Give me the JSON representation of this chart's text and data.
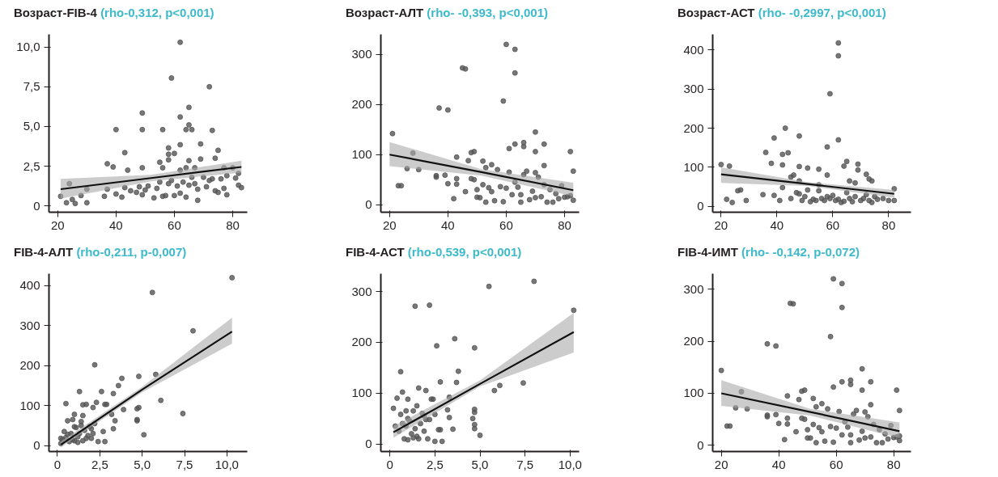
{
  "chart_data": [
    {
      "type": "scatter",
      "title": "Возраст-FIB-4",
      "subtitle": "(rho-0,312, p<0,001)",
      "xlim": [
        17,
        85
      ],
      "ylim": [
        -0.4,
        10.8
      ],
      "xticks": [
        20,
        40,
        60,
        80
      ],
      "yticks": [
        {
          "value": 0,
          "label": "0"
        },
        {
          "value": 2.5,
          "label": "2,5"
        },
        {
          "value": 5,
          "label": "5,0"
        },
        {
          "value": 7.5,
          "label": "7,5"
        },
        {
          "value": 10,
          "label": "10,0"
        }
      ],
      "marker": "circle",
      "grid": false,
      "series": [
        {
          "type": "scatter",
          "color": "#555555",
          "x": [
            62,
            59,
            72,
            49,
            65,
            62,
            65,
            40,
            49,
            56,
            64,
            66,
            73,
            69,
            62,
            58,
            60,
            58,
            75,
            43,
            74,
            58,
            65,
            69,
            37,
            39,
            49,
            55,
            56,
            44,
            62,
            64,
            67,
            77,
            24,
            21,
            23,
            25,
            26,
            28,
            30,
            30,
            36,
            37,
            40,
            42,
            43,
            45,
            47,
            48,
            49,
            50,
            51,
            53,
            54,
            55,
            56,
            57,
            58,
            59,
            60,
            61,
            62,
            63,
            64,
            65,
            66,
            67,
            68,
            68,
            70,
            71,
            72,
            73,
            74,
            75,
            76,
            77,
            78,
            78,
            80,
            81,
            82,
            83,
            82
          ],
          "values": [
            10.3,
            8.05,
            7.5,
            5.85,
            6.2,
            5.6,
            5.1,
            4.8,
            4.8,
            4.8,
            4.8,
            4.8,
            4.75,
            3.9,
            3.85,
            3.65,
            3.3,
            3.25,
            3.5,
            3.35,
            3.0,
            2.9,
            2.85,
            2.95,
            2.65,
            2.45,
            2.4,
            2.75,
            2.4,
            2.25,
            2.25,
            2.4,
            2.4,
            2.4,
            1.4,
            0.6,
            0.2,
            0.4,
            0.15,
            0.65,
            0.2,
            1.05,
            0.6,
            1.05,
            0.75,
            0.55,
            1.15,
            0.95,
            0.85,
            1.2,
            0.7,
            1.0,
            1.25,
            0.5,
            1.1,
            1.5,
            0.6,
            0.65,
            1.4,
            1.6,
            0.65,
            1.25,
            0.8,
            1.5,
            0.55,
            1.3,
            1.8,
            1.4,
            0.35,
            1.05,
            1.8,
            1.2,
            1.6,
            1.7,
            0.95,
            0.85,
            1.7,
            1.1,
            0.7,
            1.9,
            2.4,
            1.75,
            2.05,
            1.15,
            1.3
          ]
        },
        {
          "type": "line",
          "marker": "none",
          "color": "#111111",
          "x": [
            21,
            52,
            83
          ],
          "values": [
            1.05,
            1.75,
            2.45
          ],
          "lower": [
            0.45,
            1.55,
            2.1
          ],
          "upper": [
            1.7,
            1.95,
            2.85
          ]
        }
      ]
    },
    {
      "type": "scatter",
      "title": "Возраст-АЛТ",
      "subtitle": "(rho- -0,393, p<0,001)",
      "xlim": [
        17,
        85
      ],
      "ylim": [
        -15,
        340
      ],
      "xticks": [
        20,
        40,
        60,
        80
      ],
      "yticks": [
        0,
        100,
        200,
        300
      ],
      "marker": "circle",
      "grid": false,
      "series": [
        {
          "type": "scatter",
          "color": "#555555",
          "x": [
            60,
            63,
            63,
            45,
            46,
            59,
            37,
            40,
            21,
            70,
            66,
            63,
            73,
            66,
            61,
            70,
            82,
            48,
            49,
            28,
            43,
            73,
            83,
            36,
            36,
            39,
            26,
            30,
            23,
            24,
            40,
            43,
            42,
            43,
            46,
            48,
            49,
            50,
            50,
            51,
            52,
            53,
            54,
            55,
            56,
            57,
            58,
            59,
            60,
            61,
            62,
            63,
            64,
            65,
            65,
            66,
            67,
            68,
            69,
            70,
            70,
            71,
            72,
            73,
            74,
            75,
            76,
            77,
            78,
            79,
            80,
            81,
            82,
            83,
            55,
            52,
            53,
            47
          ],
          "values": [
            320,
            310,
            263,
            273,
            271,
            207,
            193,
            189,
            142,
            145,
            124,
            121,
            121,
            116,
            112,
            106,
            106,
            104,
            106,
            103,
            95,
            78,
            67,
            58,
            55,
            59,
            72,
            70,
            38,
            38,
            42,
            41,
            12,
            52,
            26,
            52,
            50,
            30,
            15,
            14,
            40,
            5,
            34,
            26,
            8,
            70,
            36,
            6,
            33,
            65,
            20,
            45,
            35,
            5,
            20,
            60,
            67,
            10,
            27,
            14,
            64,
            55,
            16,
            40,
            5,
            30,
            5,
            22,
            12,
            38,
            15,
            16,
            18,
            9,
            80,
            87,
            74,
            88
          ]
        },
        {
          "type": "line",
          "marker": "none",
          "color": "#111111",
          "x": [
            20,
            51.5,
            83
          ],
          "values": [
            100,
            65,
            29
          ],
          "lower": [
            77,
            58,
            17
          ],
          "upper": [
            125,
            71,
            44
          ]
        }
      ]
    },
    {
      "type": "scatter",
      "title": "Возраст-АСТ",
      "subtitle": "(rho- -0,2997, p<0,001)",
      "xlim": [
        17,
        88
      ],
      "ylim": [
        -15,
        440
      ],
      "xticks": [
        20,
        40,
        60,
        80
      ],
      "yticks": [
        0,
        100,
        200,
        300,
        400
      ],
      "marker": "circle",
      "grid": false,
      "series": [
        {
          "type": "scatter",
          "color": "#555555",
          "x": [
            62,
            62,
            59,
            62,
            43,
            48,
            39,
            58,
            36,
            42,
            44,
            38,
            42,
            65,
            64,
            69,
            69,
            48,
            51,
            55,
            58,
            72,
            74,
            73,
            66,
            68,
            20,
            23,
            22,
            24,
            26,
            27,
            29,
            35,
            39,
            41,
            42,
            45,
            47,
            48,
            49,
            50,
            51,
            52,
            53,
            54,
            55,
            56,
            57,
            58,
            59,
            60,
            61,
            62,
            63,
            64,
            65,
            66,
            67,
            68,
            70,
            71,
            72,
            73,
            74,
            75,
            76,
            78,
            80,
            82,
            82,
            46,
            45,
            48,
            55
          ],
          "values": [
            418,
            385,
            288,
            170,
            200,
            180,
            175,
            152,
            138,
            133,
            137,
            110,
            106,
            115,
            103,
            108,
            93,
            102,
            98,
            95,
            80,
            82,
            65,
            70,
            65,
            60,
            107,
            103,
            18,
            10,
            40,
            42,
            15,
            30,
            28,
            15,
            48,
            20,
            35,
            32,
            15,
            25,
            42,
            12,
            18,
            15,
            40,
            20,
            15,
            25,
            20,
            28,
            15,
            18,
            10,
            13,
            35,
            20,
            12,
            25,
            15,
            20,
            30,
            15,
            10,
            25,
            18,
            20,
            15,
            15,
            45,
            80,
            75,
            65,
            55
          ]
        },
        {
          "type": "line",
          "marker": "none",
          "color": "#111111",
          "x": [
            20,
            51,
            82
          ],
          "values": [
            82,
            57,
            32
          ],
          "lower": [
            60,
            52,
            22
          ],
          "upper": [
            100,
            62,
            42
          ]
        }
      ]
    },
    {
      "type": "scatter",
      "title": "FIB-4-АЛТ",
      "subtitle": "(rho-0,211, p-0,007)",
      "xlim": [
        -0.5,
        11.2
      ],
      "ylim": [
        -15,
        430
      ],
      "xticks": [
        {
          "value": 0,
          "label": "0"
        },
        {
          "value": 2.5,
          "label": "2,5"
        },
        {
          "value": 5,
          "label": "5,0"
        },
        {
          "value": 7.5,
          "label": "7,5"
        },
        {
          "value": 10,
          "label": "10,0"
        }
      ],
      "yticks": [
        0,
        100,
        200,
        300,
        400
      ],
      "marker": "circle",
      "grid": false,
      "series": [
        {
          "type": "scatter",
          "color": "#555555",
          "x": [
            10.3,
            5.6,
            8.0,
            7.4,
            6.1,
            5.8,
            4.8,
            4.8,
            4.7,
            4.7,
            4.7,
            5.1,
            3.8,
            3.6,
            3.9,
            3.3,
            3.4,
            3.2,
            3.3,
            2.6,
            2.3,
            2.1,
            2.2,
            2.8,
            2.9,
            2.7,
            2.4,
            2.8,
            2.2,
            2.0,
            1.3,
            1.5,
            1.7,
            1.5,
            1.4,
            0.5,
            0.6,
            0.9,
            1.0,
            1.1,
            1.0,
            0.8,
            0.6,
            0.5,
            0.3,
            0.2,
            0.4,
            0.7,
            0.9,
            1.2,
            1.3,
            1.5,
            1.6,
            1.7,
            1.8,
            1.9,
            2.0,
            2.1,
            1.2,
            0.2,
            1.0,
            1.4
          ],
          "values": [
            420,
            383,
            287,
            80,
            113,
            178,
            173,
            95,
            92,
            65,
            62,
            27,
            168,
            150,
            90,
            130,
            62,
            78,
            42,
            135,
            108,
            95,
            202,
            103,
            103,
            35,
            10,
            10,
            55,
            42,
            135,
            102,
            103,
            75,
            60,
            105,
            62,
            65,
            78,
            45,
            47,
            30,
            28,
            20,
            15,
            5,
            35,
            10,
            15,
            22,
            30,
            12,
            38,
            18,
            25,
            48,
            18,
            30,
            8,
            18,
            12,
            50
          ]
        },
        {
          "type": "line",
          "marker": "none",
          "color": "#111111",
          "x": [
            0.2,
            5,
            10.3
          ],
          "values": [
            2,
            140,
            285
          ],
          "lower": [
            -5,
            133,
            255
          ],
          "upper": [
            10,
            147,
            320
          ]
        }
      ]
    },
    {
      "type": "scatter",
      "title": "FIB-4-АСТ",
      "subtitle": "(rho-0,539, p<0,001)",
      "xlim": [
        -0.5,
        10.5
      ],
      "ylim": [
        -15,
        335
      ],
      "xticks": [
        {
          "value": 0,
          "label": "0"
        },
        {
          "value": 2.5,
          "label": "2,5"
        },
        {
          "value": 5,
          "label": "5,0"
        },
        {
          "value": 7.5,
          "label": "7,5"
        },
        {
          "value": 10,
          "label": "10,0"
        }
      ],
      "yticks": [
        0,
        100,
        200,
        300
      ],
      "marker": "circle",
      "grid": false,
      "series": [
        {
          "type": "scatter",
          "color": "#555555",
          "x": [
            8.0,
            5.5,
            10.2,
            1.4,
            2.2,
            3.6,
            2.6,
            4.7,
            0.6,
            3.8,
            2.8,
            3.7,
            7.4,
            6.1,
            5.8,
            1.6,
            2.0,
            0.7,
            0.4,
            1.0,
            3.3,
            2.3,
            1.9,
            4.7,
            4.7,
            4.6,
            4.7,
            4.7,
            5.0,
            3.3,
            3.2,
            3.5,
            2.9,
            2.5,
            2.7,
            2.5,
            2.2,
            0.2,
            0.3,
            0.5,
            0.6,
            0.7,
            0.8,
            0.9,
            1.0,
            1.1,
            1.2,
            1.3,
            1.4,
            1.5,
            1.6,
            1.7,
            1.8,
            1.9,
            2.0,
            2.1,
            1.3,
            1.5,
            1.0,
            0.9,
            2.8,
            2.4
          ],
          "values": [
            320,
            310,
            263,
            271,
            273,
            207,
            193,
            189,
            142,
            143,
            122,
            121,
            120,
            115,
            105,
            110,
            105,
            102,
            90,
            88,
            92,
            88,
            55,
            68,
            62,
            50,
            38,
            30,
            17,
            52,
            67,
            29,
            5,
            5,
            28,
            58,
            48,
            70,
            35,
            25,
            58,
            40,
            10,
            35,
            8,
            45,
            20,
            12,
            30,
            15,
            10,
            40,
            60,
            25,
            48,
            10,
            65,
            75,
            50,
            65,
            28,
            88
          ]
        },
        {
          "type": "line",
          "marker": "none",
          "color": "#111111",
          "x": [
            0.2,
            5,
            10.2
          ],
          "values": [
            23,
            118,
            220
          ],
          "lower": [
            12,
            113,
            180
          ],
          "upper": [
            35,
            125,
            258
          ]
        }
      ]
    },
    {
      "type": "scatter",
      "title": "FIB-4-ИМТ",
      "subtitle": "(rho- -0,142, p-0,072)",
      "xlim": [
        17,
        86
      ],
      "ylim": [
        -12,
        330
      ],
      "xticks": [
        20,
        40,
        60,
        80
      ],
      "yticks": [
        0,
        100,
        200,
        300
      ],
      "marker": "circle",
      "grid": false,
      "series": [
        {
          "type": "scatter",
          "color": "#555555",
          "x": [
            59,
            62,
            62,
            44,
            45,
            58,
            36,
            39,
            20,
            69,
            65,
            62,
            72,
            65,
            59,
            69,
            81,
            48,
            49,
            27,
            43,
            72,
            82,
            36,
            36,
            39,
            25,
            29,
            22,
            23,
            40,
            43,
            42,
            43,
            46,
            48,
            49,
            50,
            50,
            51,
            52,
            53,
            54,
            55,
            56,
            57,
            58,
            59,
            60,
            61,
            62,
            63,
            64,
            65,
            65,
            66,
            67,
            68,
            69,
            70,
            70,
            71,
            72,
            73,
            74,
            75,
            76,
            77,
            78,
            79,
            80,
            81,
            82,
            82,
            55,
            52,
            53,
            47
          ],
          "values": [
            320,
            311,
            265,
            273,
            272,
            209,
            195,
            191,
            144,
            147,
            125,
            122,
            122,
            117,
            112,
            106,
            106,
            104,
            106,
            103,
            95,
            78,
            67,
            58,
            55,
            59,
            72,
            70,
            37,
            37,
            42,
            41,
            11,
            52,
            26,
            52,
            50,
            30,
            14,
            14,
            40,
            5,
            34,
            26,
            8,
            70,
            36,
            6,
            33,
            65,
            20,
            45,
            35,
            5,
            20,
            60,
            67,
            10,
            27,
            14,
            64,
            55,
            16,
            40,
            5,
            30,
            5,
            22,
            12,
            38,
            15,
            16,
            18,
            9,
            80,
            90,
            74,
            88
          ]
        },
        {
          "type": "line",
          "marker": "none",
          "color": "#111111",
          "x": [
            20,
            51,
            82
          ],
          "values": [
            100,
            64,
            27
          ],
          "lower": [
            76,
            57,
            14
          ],
          "upper": [
            125,
            70,
            44
          ]
        }
      ]
    }
  ]
}
